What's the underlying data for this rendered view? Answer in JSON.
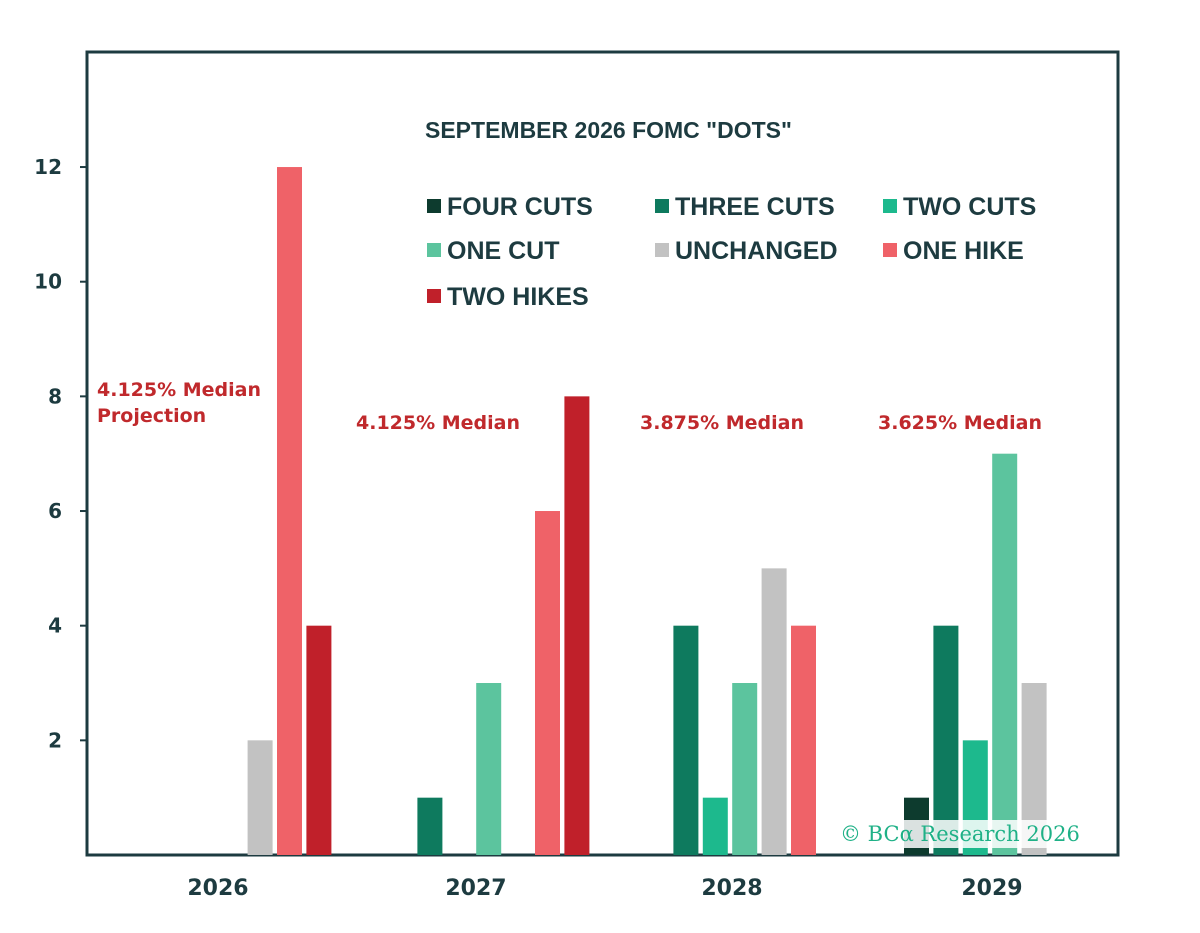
{
  "chart_data": {
    "type": "bar",
    "title": "SEPTEMBER 2026 FOMC \"DOTS\"",
    "categories": [
      "2026",
      "2027",
      "2028",
      "2029"
    ],
    "series": [
      {
        "name": "FOUR CUTS",
        "color": "#0d3b2e",
        "values": [
          0,
          0,
          0,
          1
        ]
      },
      {
        "name": "THREE CUTS",
        "color": "#0e7a5e",
        "values": [
          0,
          1,
          4,
          4
        ]
      },
      {
        "name": "TWO CUTS",
        "color": "#1db98d",
        "values": [
          0,
          0,
          1,
          2
        ]
      },
      {
        "name": "ONE CUT",
        "color": "#5cc49e",
        "values": [
          0,
          3,
          3,
          7
        ]
      },
      {
        "name": "UNCHANGED",
        "color": "#c2c2c2",
        "values": [
          2,
          0,
          5,
          3
        ]
      },
      {
        "name": "ONE HIKE",
        "color": "#ef6268",
        "values": [
          12,
          6,
          4,
          0
        ]
      },
      {
        "name": "TWO HIKES",
        "color": "#c0202a",
        "values": [
          4,
          8,
          0,
          0
        ]
      }
    ],
    "yticks": [
      2,
      4,
      6,
      8,
      10,
      12
    ],
    "ylim": [
      0,
      14
    ],
    "xlabel": "",
    "ylabel": "",
    "grid": false,
    "legend_position": "top-center",
    "annotations": [
      {
        "category": "2026",
        "lines": [
          "4.125% Median",
          "Projection"
        ]
      },
      {
        "category": "2027",
        "lines": [
          "4.125% Median"
        ]
      },
      {
        "category": "2028",
        "lines": [
          "3.875% Median"
        ]
      },
      {
        "category": "2029",
        "lines": [
          "3.625% Median"
        ]
      }
    ],
    "credit": "© BCα Research 2026"
  }
}
